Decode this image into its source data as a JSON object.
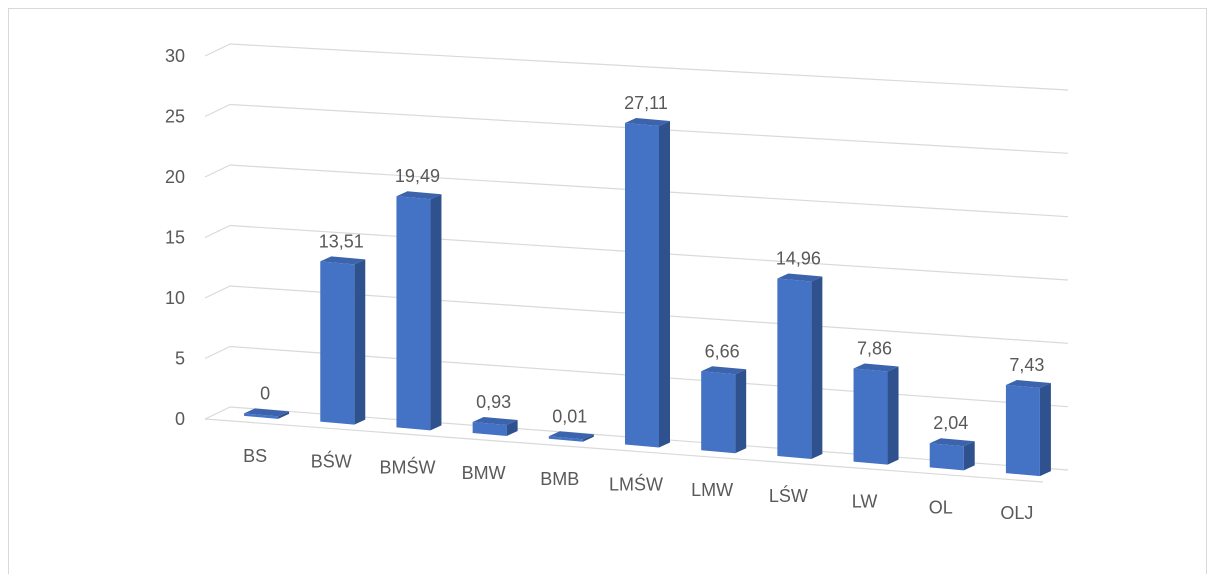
{
  "chart_data": {
    "type": "bar",
    "title": "",
    "xlabel": "",
    "ylabel": "",
    "ylim": [
      0,
      30
    ],
    "yticks": [
      "0",
      "5",
      "10",
      "15",
      "20",
      "25",
      "30"
    ],
    "grid": true,
    "legend": "none",
    "categories": [
      "BS",
      "BŚW",
      "BMŚW",
      "BMW",
      "BMB",
      "LMŚW",
      "LMW",
      "LŚW",
      "LW",
      "OL",
      "OLJ"
    ],
    "values": [
      0,
      13.51,
      19.49,
      0.93,
      0.01,
      27.11,
      6.66,
      14.96,
      7.86,
      2.04,
      7.43
    ],
    "data_labels": [
      "0",
      "13,51",
      "19,49",
      "0,93",
      "0,01",
      "27,11",
      "6,66",
      "14,96",
      "7,86",
      "2,04",
      "7,43"
    ],
    "colors": {
      "bar_front": "#4472c4",
      "bar_side": "#2f528f",
      "bar_top": "#3b64ad",
      "grid": "#d9d9d9",
      "text": "#595959"
    }
  }
}
